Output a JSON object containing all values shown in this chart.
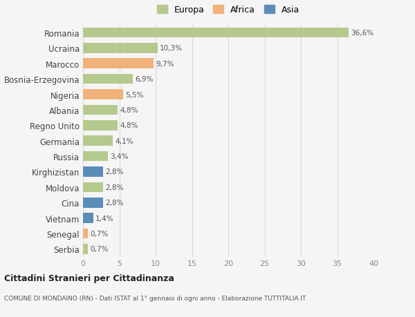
{
  "countries": [
    "Romania",
    "Ucraina",
    "Marocco",
    "Bosnia-Erzegovina",
    "Nigeria",
    "Albania",
    "Regno Unito",
    "Germania",
    "Russia",
    "Kirghizistan",
    "Moldova",
    "Cina",
    "Vietnam",
    "Senegal",
    "Serbia"
  ],
  "values": [
    36.6,
    10.3,
    9.7,
    6.9,
    5.5,
    4.8,
    4.8,
    4.1,
    3.4,
    2.8,
    2.8,
    2.8,
    1.4,
    0.7,
    0.7
  ],
  "labels": [
    "36,6%",
    "10,3%",
    "9,7%",
    "6,9%",
    "5,5%",
    "4,8%",
    "4,8%",
    "4,1%",
    "3,4%",
    "2,8%",
    "2,8%",
    "2,8%",
    "1,4%",
    "0,7%",
    "0,7%"
  ],
  "continents": [
    "Europa",
    "Europa",
    "Africa",
    "Europa",
    "Africa",
    "Europa",
    "Europa",
    "Europa",
    "Europa",
    "Asia",
    "Europa",
    "Asia",
    "Asia",
    "Africa",
    "Europa"
  ],
  "colors": {
    "Europa": "#b5c98e",
    "Africa": "#f0b27a",
    "Asia": "#5b8db8"
  },
  "xlim": [
    0,
    40
  ],
  "xticks": [
    0,
    5,
    10,
    15,
    20,
    25,
    30,
    35,
    40
  ],
  "background_color": "#f5f5f5",
  "grid_color": "#d8d8d8",
  "title1": "Cittadini Stranieri per Cittadinanza",
  "title2": "COMUNE DI MONDAINO (RN) - Dati ISTAT al 1° gennaio di ogni anno - Elaborazione TUTTITALIA.IT"
}
